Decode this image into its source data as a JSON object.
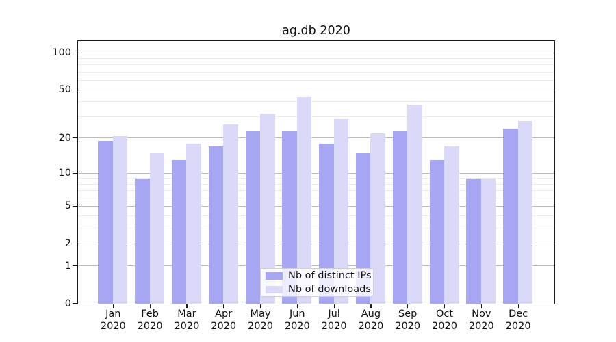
{
  "chart_data": {
    "type": "bar",
    "title": "ag.db 2020",
    "categories": [
      "Jan 2020",
      "Feb 2020",
      "Mar 2020",
      "Apr 2020",
      "May 2020",
      "Jun 2020",
      "Jul 2020",
      "Aug 2020",
      "Sep 2020",
      "Oct 2020",
      "Nov 2020",
      "Dec 2020"
    ],
    "series": [
      {
        "name": "Nb of distinct IPs",
        "color": "#a6a6f2",
        "values": [
          19,
          9,
          13,
          17,
          23,
          23,
          18,
          15,
          23,
          13,
          9,
          24
        ]
      },
      {
        "name": "Nb of downloads",
        "color": "#dadaf8",
        "values": [
          21,
          15,
          18,
          26,
          32,
          44,
          29,
          22,
          38,
          17,
          9,
          28
        ]
      }
    ],
    "y_scale": "log(1+v)",
    "y_major_ticks": [
      0,
      1,
      2,
      5,
      10,
      20,
      50,
      100
    ],
    "y_minor_gridlines": [
      3,
      4,
      6,
      7,
      8,
      9,
      30,
      40,
      60,
      70,
      80,
      90
    ],
    "ylim": [
      0,
      127
    ],
    "xlabel": "",
    "ylabel": "",
    "grid": true,
    "legend_position": "lower center"
  }
}
